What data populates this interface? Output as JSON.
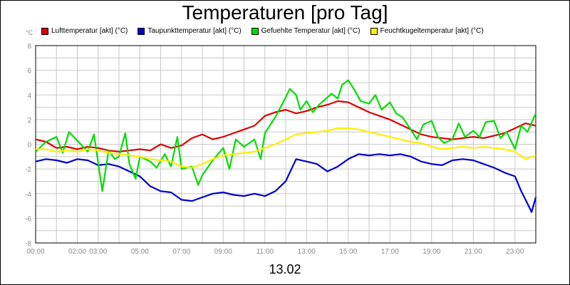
{
  "chart_data": {
    "type": "line",
    "title": "Temperaturen [pro Tag]",
    "ylabel": "°C",
    "xlabel": "13.02",
    "ylim": [
      -8,
      8
    ],
    "yticks": [
      -8,
      -6,
      -4,
      -2,
      0,
      2,
      4,
      6,
      8
    ],
    "xlim": [
      0,
      24
    ],
    "xticks": [
      {
        "h": 0,
        "label": "00:00"
      },
      {
        "h": 2,
        "label": "02:00"
      },
      {
        "h": 3,
        "label": "03:00"
      },
      {
        "h": 5,
        "label": "05:00"
      },
      {
        "h": 7,
        "label": "07:00"
      },
      {
        "h": 9,
        "label": "09:00"
      },
      {
        "h": 11,
        "label": "11:00"
      },
      {
        "h": 13,
        "label": "13:00"
      },
      {
        "h": 15,
        "label": "15:00"
      },
      {
        "h": 17,
        "label": "17:00"
      },
      {
        "h": 19,
        "label": "19:00"
      },
      {
        "h": 21,
        "label": "21:00"
      },
      {
        "h": 23,
        "label": "23:00"
      }
    ],
    "grid": true,
    "legend_position": "top",
    "series": [
      {
        "name": "Lufttemperatur [akt] (°C)",
        "color": "#dd0000",
        "points": [
          [
            0,
            0.4
          ],
          [
            0.5,
            0.2
          ],
          [
            1,
            -0.3
          ],
          [
            1.5,
            -0.2
          ],
          [
            2,
            -0.4
          ],
          [
            2.5,
            -0.2
          ],
          [
            3,
            -0.3
          ],
          [
            3.5,
            -0.5
          ],
          [
            4,
            -0.6
          ],
          [
            4.5,
            -0.5
          ],
          [
            5,
            -0.4
          ],
          [
            5.5,
            -0.5
          ],
          [
            6,
            0.0
          ],
          [
            6.5,
            -0.3
          ],
          [
            7,
            -0.1
          ],
          [
            7.5,
            0.5
          ],
          [
            8,
            0.8
          ],
          [
            8.5,
            0.4
          ],
          [
            9,
            0.6
          ],
          [
            9.5,
            0.9
          ],
          [
            10,
            1.2
          ],
          [
            10.5,
            1.5
          ],
          [
            11,
            2.3
          ],
          [
            11.5,
            2.6
          ],
          [
            12,
            2.8
          ],
          [
            12.5,
            2.5
          ],
          [
            13,
            2.7
          ],
          [
            13.5,
            3.0
          ],
          [
            14,
            3.2
          ],
          [
            14.5,
            3.5
          ],
          [
            15,
            3.4
          ],
          [
            15.5,
            3.0
          ],
          [
            16,
            2.6
          ],
          [
            16.5,
            2.3
          ],
          [
            17,
            2.0
          ],
          [
            17.5,
            1.6
          ],
          [
            18,
            1.2
          ],
          [
            18.5,
            0.8
          ],
          [
            19,
            0.6
          ],
          [
            19.5,
            0.5
          ],
          [
            20,
            0.4
          ],
          [
            20.5,
            0.5
          ],
          [
            21,
            0.6
          ],
          [
            21.5,
            0.5
          ],
          [
            22,
            0.7
          ],
          [
            22.5,
            0.9
          ],
          [
            23,
            1.3
          ],
          [
            23.5,
            1.7
          ],
          [
            24,
            1.5
          ]
        ]
      },
      {
        "name": "Taupunkttemperatur [akt] (°C)",
        "color": "#0000cc",
        "points": [
          [
            0,
            -1.4
          ],
          [
            0.5,
            -1.2
          ],
          [
            1,
            -1.3
          ],
          [
            1.5,
            -1.5
          ],
          [
            2,
            -1.2
          ],
          [
            2.5,
            -1.3
          ],
          [
            3,
            -1.7
          ],
          [
            3.5,
            -1.6
          ],
          [
            4,
            -1.8
          ],
          [
            4.5,
            -2.2
          ],
          [
            5,
            -2.6
          ],
          [
            5.5,
            -3.4
          ],
          [
            6,
            -3.8
          ],
          [
            6.5,
            -3.9
          ],
          [
            7,
            -4.5
          ],
          [
            7.5,
            -4.6
          ],
          [
            8,
            -4.3
          ],
          [
            8.5,
            -4.0
          ],
          [
            9,
            -3.9
          ],
          [
            9.5,
            -4.1
          ],
          [
            10,
            -4.2
          ],
          [
            10.5,
            -4.0
          ],
          [
            11,
            -4.2
          ],
          [
            11.5,
            -3.8
          ],
          [
            12,
            -3.0
          ],
          [
            12.5,
            -1.2
          ],
          [
            13,
            -1.4
          ],
          [
            13.5,
            -1.6
          ],
          [
            14,
            -2.2
          ],
          [
            14.5,
            -1.8
          ],
          [
            15,
            -1.2
          ],
          [
            15.5,
            -0.8
          ],
          [
            16,
            -0.9
          ],
          [
            16.5,
            -0.8
          ],
          [
            17,
            -0.9
          ],
          [
            17.5,
            -0.8
          ],
          [
            18,
            -1.0
          ],
          [
            18.5,
            -1.4
          ],
          [
            19,
            -1.6
          ],
          [
            19.5,
            -1.7
          ],
          [
            20,
            -1.3
          ],
          [
            20.5,
            -1.2
          ],
          [
            21,
            -1.3
          ],
          [
            21.5,
            -1.6
          ],
          [
            22,
            -1.9
          ],
          [
            22.5,
            -2.3
          ],
          [
            23,
            -2.6
          ],
          [
            23.3,
            -3.8
          ],
          [
            23.6,
            -4.8
          ],
          [
            23.8,
            -5.5
          ],
          [
            24,
            -4.3
          ]
        ]
      },
      {
        "name": "Gefuehlte Temperatur [akt] (°C)",
        "color": "#00dd00",
        "points": [
          [
            0,
            -0.6
          ],
          [
            0.5,
            0.2
          ],
          [
            1,
            0.6
          ],
          [
            1.3,
            -0.7
          ],
          [
            1.6,
            1.0
          ],
          [
            2,
            0.3
          ],
          [
            2.5,
            -0.6
          ],
          [
            2.8,
            0.8
          ],
          [
            3,
            -1.5
          ],
          [
            3.2,
            -3.8
          ],
          [
            3.5,
            -0.5
          ],
          [
            3.8,
            -1.2
          ],
          [
            4,
            -1.0
          ],
          [
            4.3,
            0.9
          ],
          [
            4.5,
            -1.6
          ],
          [
            4.8,
            -2.8
          ],
          [
            5,
            -1.0
          ],
          [
            5.5,
            -1.4
          ],
          [
            5.8,
            -1.9
          ],
          [
            6.2,
            -0.8
          ],
          [
            6.5,
            -1.8
          ],
          [
            6.8,
            0.6
          ],
          [
            7,
            -2.0
          ],
          [
            7.5,
            -1.8
          ],
          [
            7.8,
            -3.3
          ],
          [
            8,
            -2.5
          ],
          [
            8.5,
            -1.3
          ],
          [
            9,
            -0.3
          ],
          [
            9.3,
            -2.0
          ],
          [
            9.6,
            0.4
          ],
          [
            10,
            -0.2
          ],
          [
            10.5,
            0.4
          ],
          [
            10.8,
            -1.2
          ],
          [
            11,
            0.9
          ],
          [
            11.5,
            2.2
          ],
          [
            12,
            3.8
          ],
          [
            12.2,
            4.5
          ],
          [
            12.5,
            4.0
          ],
          [
            12.7,
            2.8
          ],
          [
            13,
            3.5
          ],
          [
            13.3,
            2.6
          ],
          [
            13.6,
            3.2
          ],
          [
            14,
            3.8
          ],
          [
            14.2,
            4.1
          ],
          [
            14.5,
            3.7
          ],
          [
            14.7,
            4.8
          ],
          [
            15,
            5.2
          ],
          [
            15.3,
            4.4
          ],
          [
            15.6,
            3.5
          ],
          [
            16,
            3.3
          ],
          [
            16.3,
            4.0
          ],
          [
            16.6,
            2.8
          ],
          [
            17,
            3.4
          ],
          [
            17.3,
            2.5
          ],
          [
            17.6,
            2.2
          ],
          [
            18,
            1.2
          ],
          [
            18.3,
            0.4
          ],
          [
            18.6,
            1.6
          ],
          [
            19,
            1.9
          ],
          [
            19.3,
            0.6
          ],
          [
            19.6,
            0.1
          ],
          [
            20,
            0.4
          ],
          [
            20.3,
            1.7
          ],
          [
            20.6,
            0.6
          ],
          [
            21,
            1.1
          ],
          [
            21.3,
            0.6
          ],
          [
            21.6,
            1.8
          ],
          [
            22,
            1.9
          ],
          [
            22.3,
            0.5
          ],
          [
            22.6,
            1.0
          ],
          [
            23,
            -0.4
          ],
          [
            23.3,
            1.5
          ],
          [
            23.6,
            1.0
          ],
          [
            24,
            2.5
          ]
        ]
      },
      {
        "name": "Feuchtkugeltemperatur [akt] (°C)",
        "color": "#ffee00",
        "points": [
          [
            0,
            -0.4
          ],
          [
            0.5,
            -0.4
          ],
          [
            1,
            -0.6
          ],
          [
            1.5,
            -0.5
          ],
          [
            2,
            -0.6
          ],
          [
            2.5,
            -0.4
          ],
          [
            3,
            -0.5
          ],
          [
            3.5,
            -0.7
          ],
          [
            4,
            -0.8
          ],
          [
            4.5,
            -0.9
          ],
          [
            5,
            -1.0
          ],
          [
            5.5,
            -1.2
          ],
          [
            6,
            -1.3
          ],
          [
            6.5,
            -1.4
          ],
          [
            7,
            -1.8
          ],
          [
            7.5,
            -1.9
          ],
          [
            8,
            -1.6
          ],
          [
            8.5,
            -1.2
          ],
          [
            9,
            -0.9
          ],
          [
            9.5,
            -0.8
          ],
          [
            10,
            -0.7
          ],
          [
            10.5,
            -0.6
          ],
          [
            11,
            -0.3
          ],
          [
            11.5,
            0.0
          ],
          [
            12,
            0.4
          ],
          [
            12.5,
            0.8
          ],
          [
            13,
            0.9
          ],
          [
            13.5,
            1.0
          ],
          [
            14,
            1.1
          ],
          [
            14.5,
            1.3
          ],
          [
            15,
            1.3
          ],
          [
            15.5,
            1.2
          ],
          [
            16,
            1.0
          ],
          [
            16.5,
            0.8
          ],
          [
            17,
            0.6
          ],
          [
            17.5,
            0.4
          ],
          [
            18,
            0.2
          ],
          [
            18.5,
            0.1
          ],
          [
            19,
            -0.2
          ],
          [
            19.5,
            -0.4
          ],
          [
            20,
            -0.3
          ],
          [
            20.5,
            -0.2
          ],
          [
            21,
            -0.3
          ],
          [
            21.5,
            -0.2
          ],
          [
            22,
            -0.3
          ],
          [
            22.5,
            -0.4
          ],
          [
            23,
            -0.6
          ],
          [
            23.5,
            -1.2
          ],
          [
            24,
            -0.9
          ]
        ]
      }
    ]
  }
}
